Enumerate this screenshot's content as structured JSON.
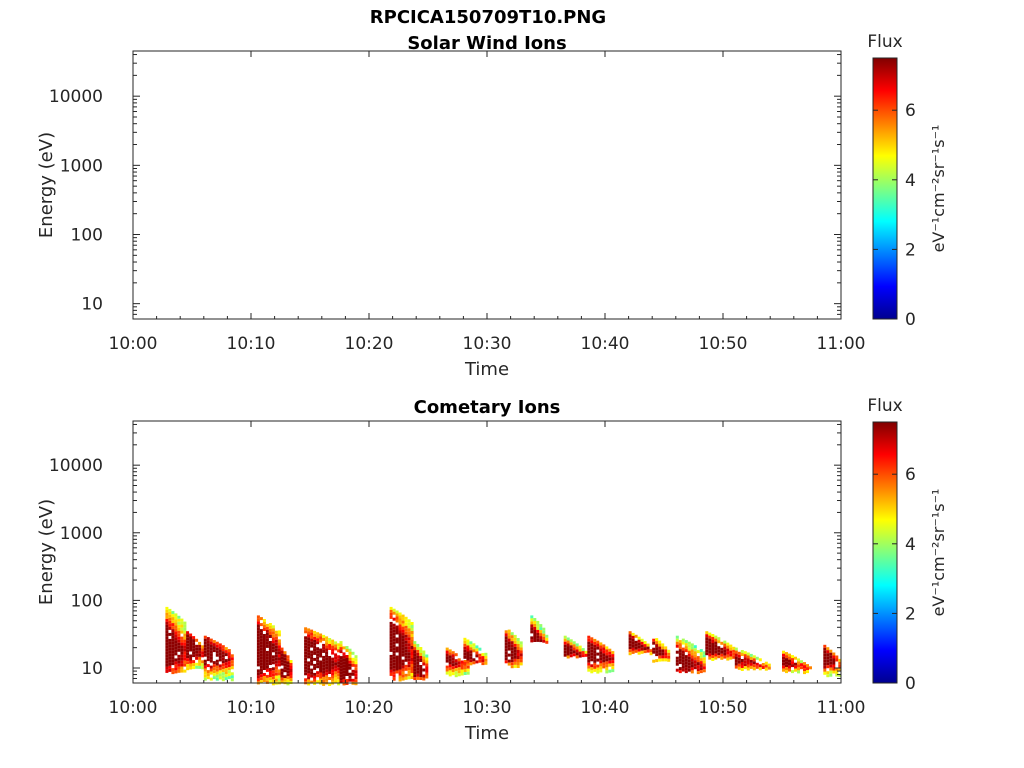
{
  "figure": {
    "title": "RPCICA150709T10.PNG"
  },
  "colorbar": {
    "label": "Flux",
    "unit_text": "eV⁻¹cm⁻²sr⁻¹s⁻¹",
    "ticks": [
      0,
      2,
      4,
      6
    ],
    "range": [
      0,
      7.5
    ],
    "colormap": "jet"
  },
  "chart_data": [
    {
      "type": "heatmap",
      "title": "Solar Wind Ions",
      "xlabel": "Time",
      "ylabel": "Energy (eV)",
      "x_ticks": [
        "10:00",
        "10:10",
        "10:20",
        "10:30",
        "10:40",
        "10:50",
        "11:00"
      ],
      "y_ticks": [
        10,
        100,
        1000,
        10000
      ],
      "y_scale": "log",
      "ylim": [
        6,
        45000
      ],
      "xlim": [
        "10:00",
        "11:00"
      ],
      "events": []
    },
    {
      "type": "heatmap",
      "title": "Cometary Ions",
      "xlabel": "Time",
      "ylabel": "Energy (eV)",
      "x_ticks": [
        "10:00",
        "10:10",
        "10:20",
        "10:30",
        "10:40",
        "10:50",
        "11:00"
      ],
      "y_ticks": [
        10,
        100,
        1000,
        10000
      ],
      "y_scale": "log",
      "ylim": [
        6,
        45000
      ],
      "xlim": [
        "10:00",
        "11:00"
      ],
      "events": [
        {
          "t0": "10:02:45",
          "t1": "10:04:30",
          "emin": 9,
          "epeak": 22,
          "emax": 80,
          "peak": 6.6
        },
        {
          "t0": "10:04:30",
          "t1": "10:06:00",
          "emin": 10,
          "epeak": 22,
          "emax": 35,
          "peak": 6.8
        },
        {
          "t0": "10:06:00",
          "t1": "10:08:30",
          "emin": 7,
          "epeak": 18,
          "emax": 30,
          "peak": 6.2
        },
        {
          "t0": "10:10:30",
          "t1": "10:12:30",
          "emin": 6,
          "epeak": 20,
          "emax": 60,
          "peak": 7.3
        },
        {
          "t0": "10:12:30",
          "t1": "10:13:30",
          "emin": 6,
          "epeak": 12,
          "emax": 20,
          "peak": 7.0
        },
        {
          "t0": "10:14:30",
          "t1": "10:17:30",
          "emin": 6,
          "epeak": 16,
          "emax": 40,
          "peak": 7.3
        },
        {
          "t0": "10:17:30",
          "t1": "10:19:00",
          "emin": 6,
          "epeak": 11,
          "emax": 25,
          "peak": 6.5
        },
        {
          "t0": "10:21:45",
          "t1": "10:23:45",
          "emin": 7,
          "epeak": 22,
          "emax": 80,
          "peak": 7.0
        },
        {
          "t0": "10:23:45",
          "t1": "10:25:00",
          "emin": 7,
          "epeak": 12,
          "emax": 25,
          "peak": 6.4
        },
        {
          "t0": "10:26:30",
          "t1": "10:28:30",
          "emin": 8,
          "epeak": 14,
          "emax": 20,
          "peak": 5.0
        },
        {
          "t0": "10:28:00",
          "t1": "10:30:00",
          "emin": 12,
          "epeak": 17,
          "emax": 28,
          "peak": 5.3
        },
        {
          "t0": "10:31:30",
          "t1": "10:33:00",
          "emin": 11,
          "epeak": 20,
          "emax": 40,
          "peak": 6.0
        },
        {
          "t0": "10:33:40",
          "t1": "10:35:00",
          "emin": 25,
          "epeak": 33,
          "emax": 60,
          "peak": 5.4
        },
        {
          "t0": "10:36:30",
          "t1": "10:38:30",
          "emin": 15,
          "epeak": 20,
          "emax": 30,
          "peak": 5.6
        },
        {
          "t0": "10:38:30",
          "t1": "10:40:45",
          "emin": 9,
          "epeak": 18,
          "emax": 30,
          "peak": 6.4
        },
        {
          "t0": "10:42:00",
          "t1": "10:44:00",
          "emin": 17,
          "epeak": 25,
          "emax": 35,
          "peak": 6.2
        },
        {
          "t0": "10:44:00",
          "t1": "10:45:30",
          "emin": 13,
          "epeak": 20,
          "emax": 30,
          "peak": 5.6
        },
        {
          "t0": "10:46:00",
          "t1": "10:48:30",
          "emin": 9,
          "epeak": 14,
          "emax": 30,
          "peak": 6.2
        },
        {
          "t0": "10:48:30",
          "t1": "10:51:00",
          "emin": 14,
          "epeak": 22,
          "emax": 35,
          "peak": 6.4
        },
        {
          "t0": "10:51:00",
          "t1": "10:54:00",
          "emin": 10,
          "epeak": 14,
          "emax": 20,
          "peak": 4.8
        },
        {
          "t0": "10:55:00",
          "t1": "10:57:30",
          "emin": 9,
          "epeak": 13,
          "emax": 18,
          "peak": 4.6
        },
        {
          "t0": "10:58:30",
          "t1": "11:00:00",
          "emin": 8,
          "epeak": 15,
          "emax": 22,
          "peak": 5.8
        }
      ]
    }
  ]
}
